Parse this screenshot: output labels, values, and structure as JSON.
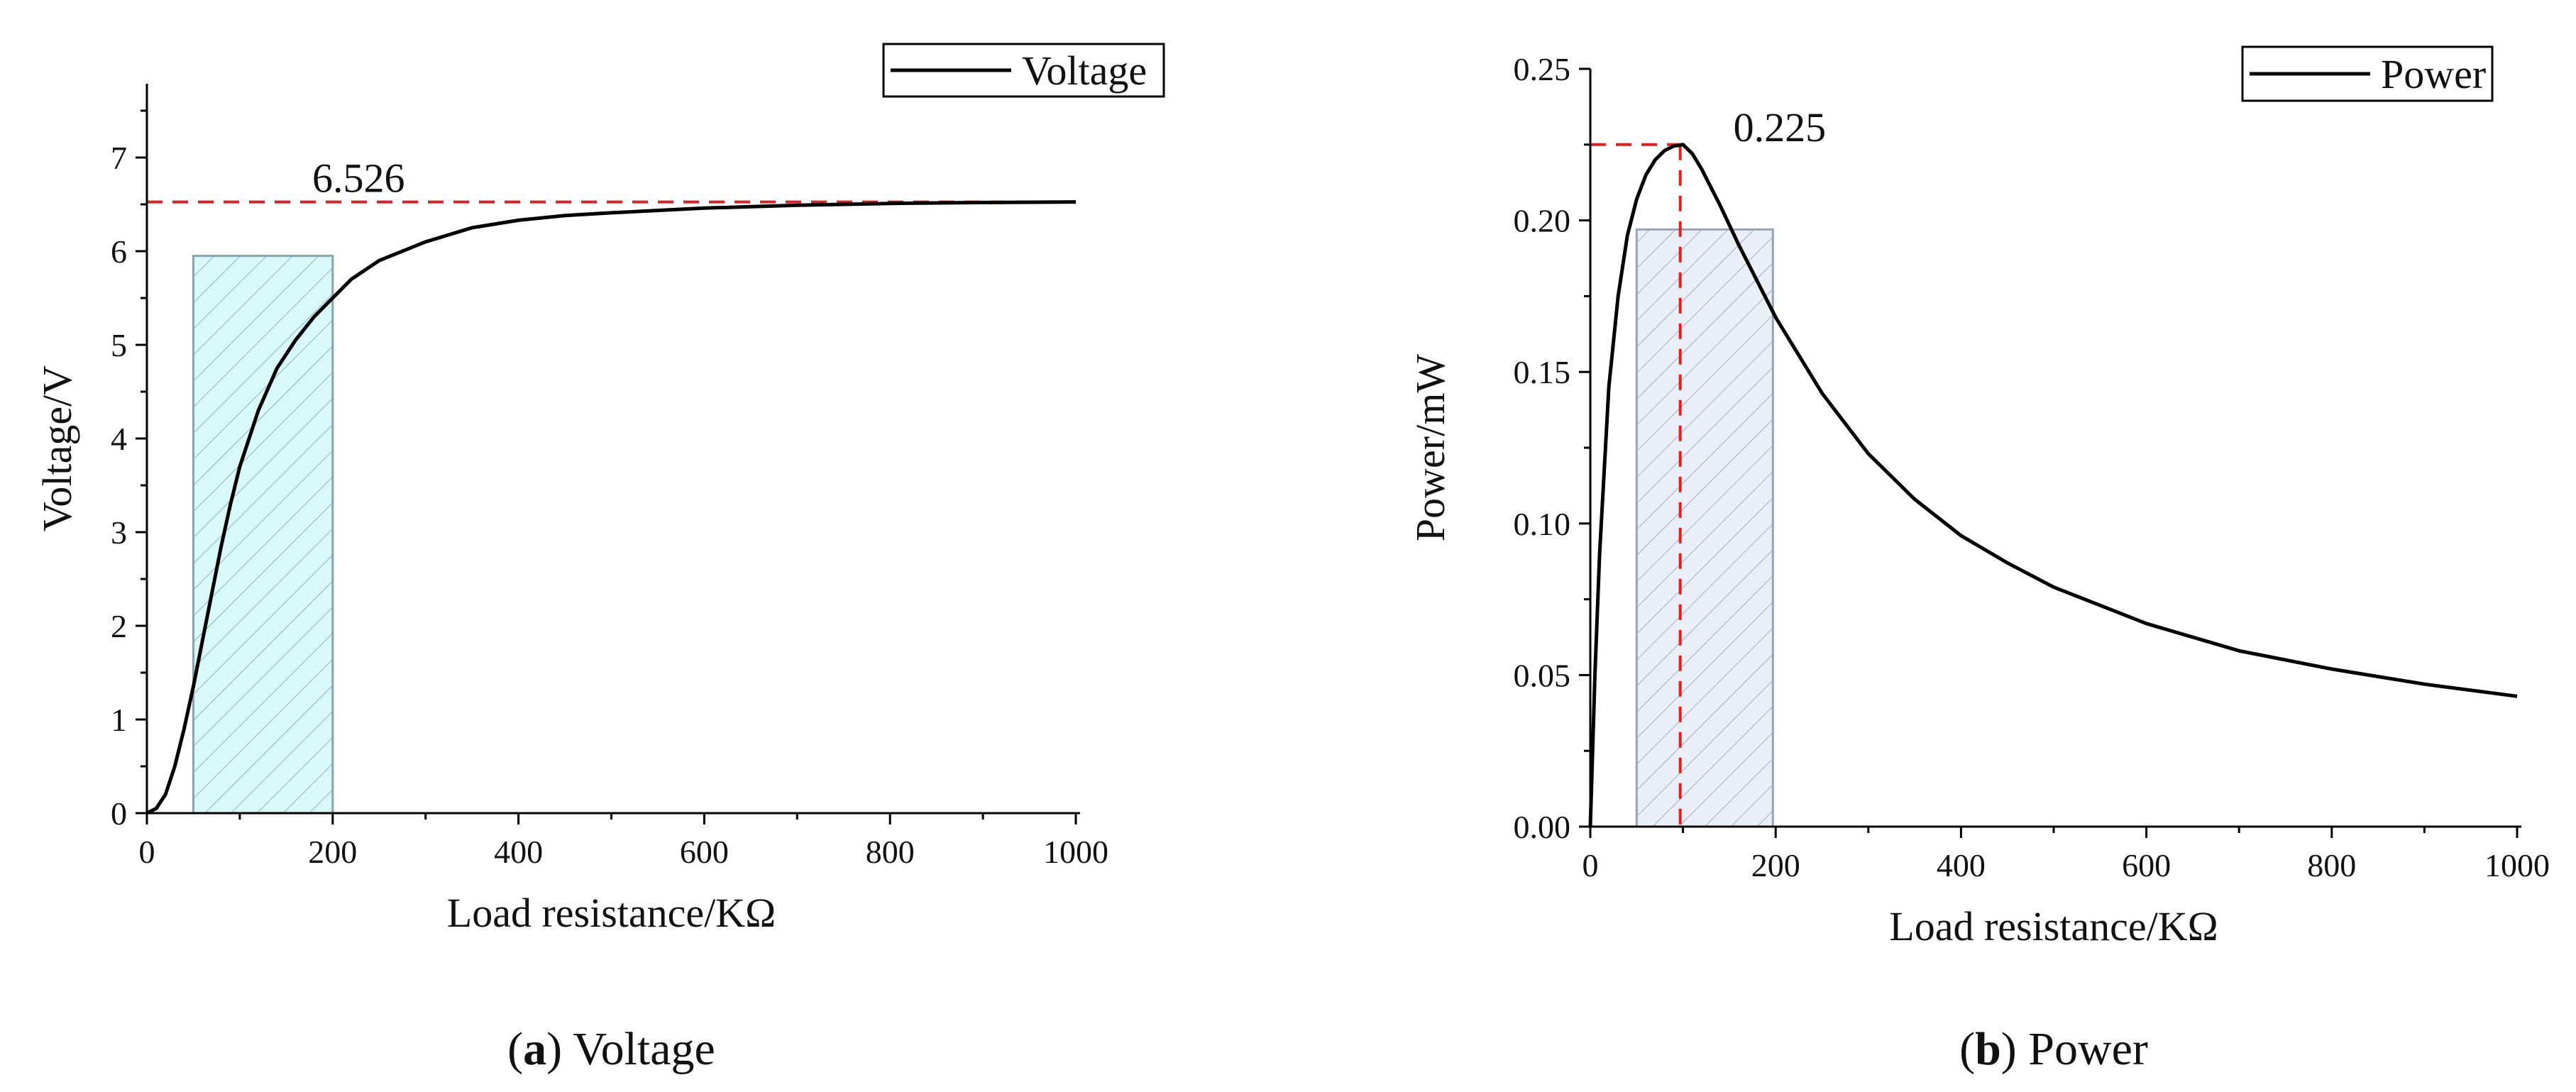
{
  "chart_data": [
    {
      "type": "line",
      "panel_label": "a",
      "caption": "Voltage",
      "title": "",
      "xlabel": "Load resistance/KΩ",
      "ylabel": "Voltage/V",
      "xlim": [
        0,
        1000
      ],
      "ylim": [
        0,
        7.5
      ],
      "x_ticks": [
        0,
        200,
        400,
        600,
        800,
        1000
      ],
      "y_ticks": [
        0,
        1,
        2,
        3,
        4,
        5,
        6,
        7
      ],
      "grid": false,
      "legend_position": "top-right",
      "series": [
        {
          "name": "Voltage",
          "color": "#000000",
          "x": [
            0,
            10,
            20,
            30,
            40,
            50,
            60,
            70,
            80,
            90,
            100,
            120,
            140,
            160,
            180,
            200,
            220,
            250,
            300,
            350,
            400,
            450,
            500,
            600,
            700,
            800,
            900,
            1000
          ],
          "y": [
            0,
            0.05,
            0.2,
            0.5,
            0.9,
            1.35,
            1.85,
            2.35,
            2.85,
            3.3,
            3.7,
            4.3,
            4.75,
            5.05,
            5.3,
            5.5,
            5.7,
            5.9,
            6.1,
            6.25,
            6.33,
            6.38,
            6.41,
            6.46,
            6.49,
            6.51,
            6.52,
            6.526
          ]
        }
      ],
      "reference_lines": [
        {
          "orientation": "horizontal",
          "value": 6.526,
          "label": "6.526",
          "color": "#e02020"
        }
      ],
      "shaded_region": {
        "x": [
          50,
          200
        ],
        "y": [
          0,
          5.95
        ],
        "fill": "#d8f7f7",
        "stroke": "#7fa7b0"
      }
    },
    {
      "type": "line",
      "panel_label": "b",
      "caption": "Power",
      "title": "",
      "xlabel": "Load resistance/KΩ",
      "ylabel": "Power/mW",
      "xlim": [
        0,
        1000
      ],
      "ylim": [
        0,
        0.25
      ],
      "x_ticks": [
        0,
        200,
        400,
        600,
        800,
        1000
      ],
      "y_ticks": [
        0,
        0.05,
        0.1,
        0.15,
        0.2,
        0.25
      ],
      "y_tick_labels": [
        "0.00",
        "0.05",
        "0.10",
        "0.15",
        "0.20",
        "0.25"
      ],
      "grid": false,
      "legend_position": "top-right",
      "series": [
        {
          "name": "Power",
          "color": "#000000",
          "x": [
            0,
            5,
            10,
            20,
            30,
            40,
            50,
            60,
            70,
            80,
            90,
            100,
            110,
            120,
            140,
            160,
            180,
            200,
            250,
            300,
            350,
            400,
            450,
            500,
            600,
            700,
            800,
            900,
            1000
          ],
          "y": [
            0,
            0.05,
            0.09,
            0.145,
            0.175,
            0.195,
            0.207,
            0.215,
            0.22,
            0.223,
            0.2245,
            0.225,
            0.222,
            0.217,
            0.205,
            0.192,
            0.18,
            0.168,
            0.143,
            0.123,
            0.108,
            0.096,
            0.087,
            0.079,
            0.067,
            0.058,
            0.052,
            0.047,
            0.043
          ]
        }
      ],
      "reference_lines": [
        {
          "orientation": "peak-marker",
          "x": 97,
          "value": 0.225,
          "label": "0.225",
          "color": "#e02020"
        }
      ],
      "shaded_region": {
        "x": [
          50,
          197
        ],
        "y": [
          0,
          0.197
        ],
        "fill": "#e7ecf6",
        "stroke": "#9aa3b8"
      }
    }
  ]
}
